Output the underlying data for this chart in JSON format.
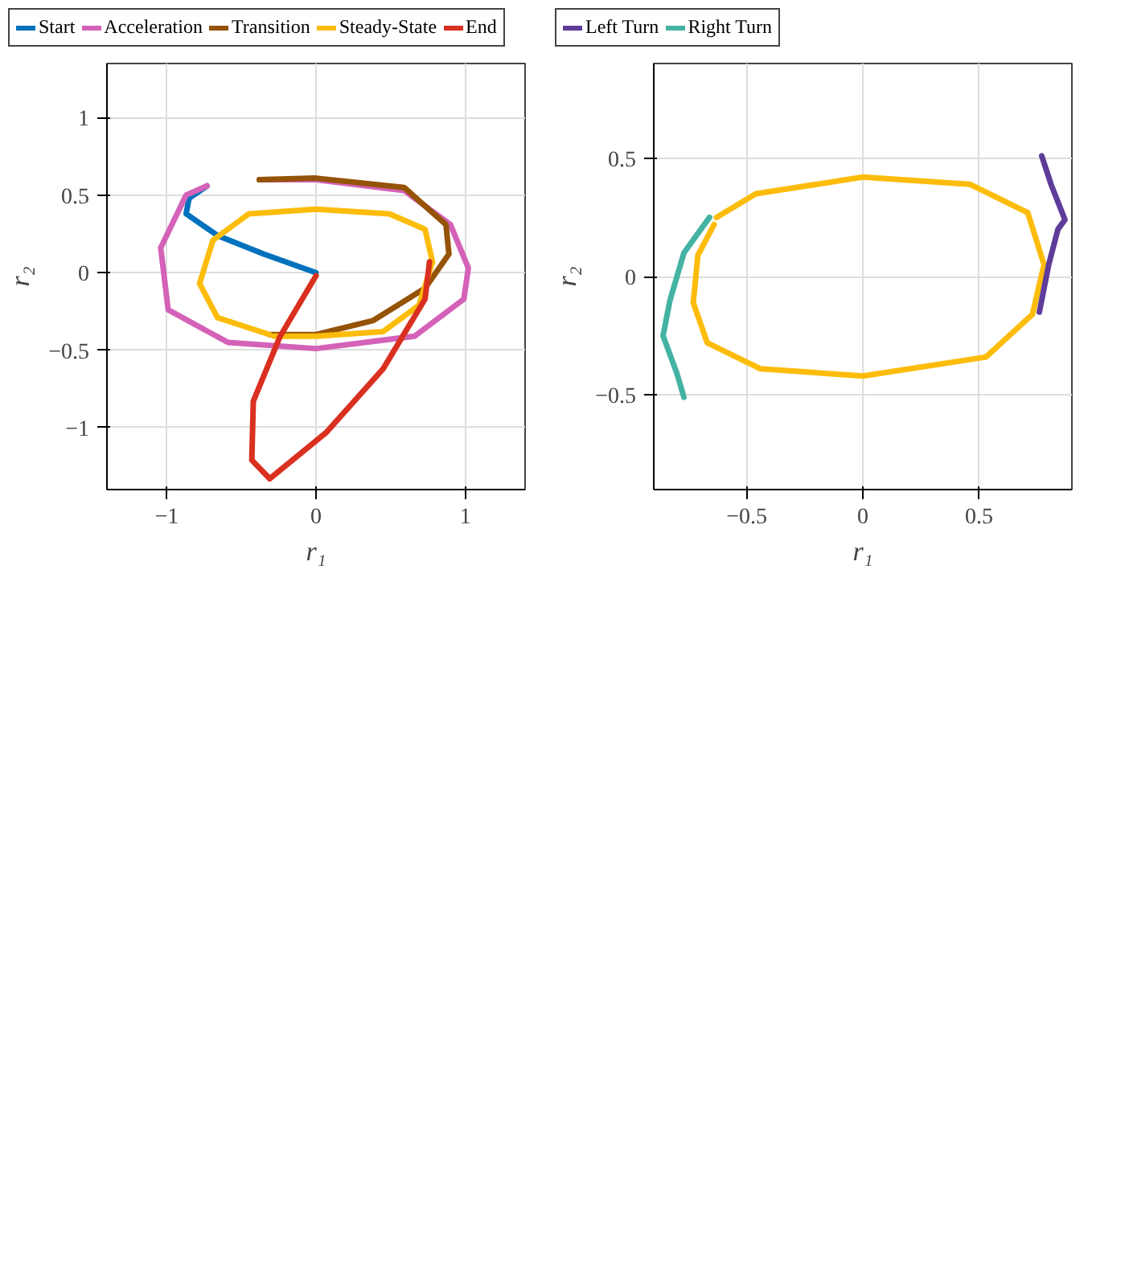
{
  "chart_data": [
    {
      "type": "line",
      "xlabel": "r₁",
      "ylabel": "r₂",
      "xlim": [
        -1.4,
        1.4
      ],
      "ylim": [
        -1.4,
        1.35
      ],
      "xticks": [
        -1,
        0,
        1
      ],
      "yticks": [
        -1,
        -0.5,
        0,
        0.5,
        1
      ],
      "grid": true,
      "legend": "top",
      "line_style": "solid",
      "marker": "none",
      "series": [
        {
          "name": "Start",
          "color": "#0072bd",
          "x": [
            0,
            -0.35,
            -0.66,
            -0.87,
            -0.85,
            -0.73
          ],
          "values": [
            0,
            0.12,
            0.24,
            0.38,
            0.48,
            0.56
          ]
        },
        {
          "name": "Acceleration",
          "color": "#d462b8",
          "x": [
            -0.73,
            -0.87,
            -1.04,
            -0.99,
            -0.59,
            0,
            0.66,
            0.99,
            1.02,
            0.9,
            0.59,
            0,
            -0.38
          ],
          "values": [
            0.56,
            0.5,
            0.16,
            -0.24,
            -0.45,
            -0.49,
            -0.41,
            -0.17,
            0.03,
            0.31,
            0.53,
            0.6,
            0.6
          ]
        },
        {
          "name": "Transition",
          "color": "#955306",
          "x": [
            -0.38,
            0,
            0.59,
            0.87,
            0.89,
            0.73,
            0.38,
            0,
            -0.31
          ],
          "values": [
            0.6,
            0.61,
            0.55,
            0.31,
            0.12,
            -0.1,
            -0.31,
            -0.4,
            -0.4
          ]
        },
        {
          "name": "Steady-State",
          "color": "#fcbc0a",
          "x": [
            -0.31,
            -0.66,
            -0.78,
            -0.69,
            -0.45,
            0,
            0.49,
            0.73,
            0.78,
            0.69,
            0.45,
            0,
            -0.28
          ],
          "values": [
            -0.4,
            -0.29,
            -0.07,
            0.21,
            0.38,
            0.41,
            0.38,
            0.28,
            0.07,
            -0.21,
            -0.38,
            -0.41,
            -0.41
          ]
        },
        {
          "name": "End",
          "color": "#d93020",
          "x": [
            0.76,
            0.73,
            0.45,
            0.07,
            -0.31,
            -0.43,
            -0.42,
            -0.24,
            0
          ],
          "values": [
            0.07,
            -0.17,
            -0.62,
            -1.03,
            -1.33,
            -1.21,
            -0.83,
            -0.41,
            -0.02
          ]
        }
      ]
    },
    {
      "type": "line",
      "xlabel": "r₁",
      "ylabel": "r₂",
      "xlim": [
        -0.9,
        0.9
      ],
      "ylim": [
        -0.9,
        0.9
      ],
      "xticks": [
        -0.5,
        0,
        0.5
      ],
      "yticks": [
        -0.5,
        0,
        0.5
      ],
      "grid": true,
      "legend": "top",
      "line_style": "solid",
      "marker": "none",
      "series": [
        {
          "color": "#fcbc0a",
          "x": [
            -0.63,
            -0.46,
            0,
            0.46,
            0.71,
            0.78,
            0.73,
            0.53,
            0,
            -0.44,
            -0.67,
            -0.73,
            -0.71,
            -0.64
          ],
          "values": [
            0.25,
            0.35,
            0.42,
            0.39,
            0.27,
            0.05,
            -0.16,
            -0.34,
            -0.42,
            -0.39,
            -0.28,
            -0.11,
            0.09,
            0.22
          ]
        },
        {
          "name": "Left Turn",
          "color": "#5e3c99",
          "x": [
            0.76,
            0.8,
            0.84,
            0.87,
            0.81,
            0.77
          ],
          "values": [
            -0.15,
            0.05,
            0.2,
            0.24,
            0.39,
            0.51
          ]
        },
        {
          "name": "Right Turn",
          "color": "#44b3a3",
          "x": [
            -0.66,
            -0.77,
            -0.83,
            -0.86,
            -0.8,
            -0.77
          ],
          "values": [
            0.25,
            0.1,
            -0.1,
            -0.25,
            -0.41,
            -0.51
          ]
        }
      ]
    }
  ]
}
